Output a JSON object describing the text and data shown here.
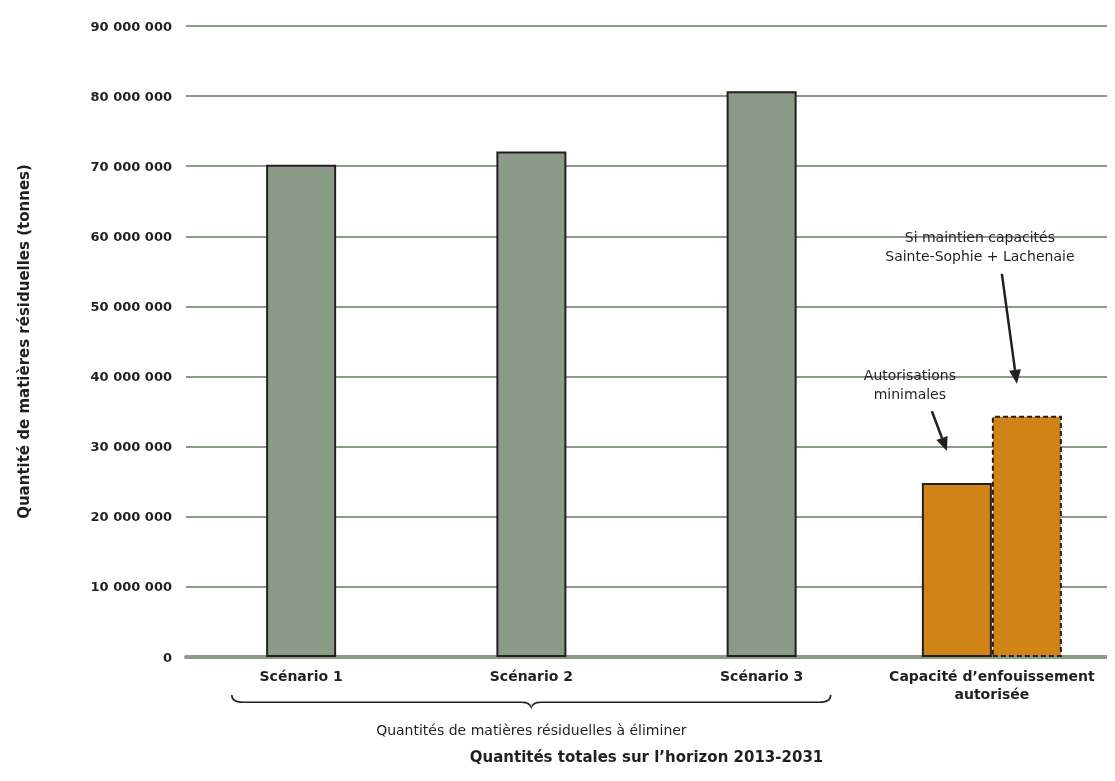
{
  "chart_data": {
    "type": "bar",
    "xlabel": "Quantités totales sur l’horizon 2013-2031",
    "ylabel": "Quantité de matières résiduelles (tonnes)",
    "categories": [
      "Scénario 1",
      "Scénario 2",
      "Scénario 3",
      "Capacité d’enfouissement\nautorisée"
    ],
    "series": [
      {
        "color": "#8a9b87",
        "values": [
          70200000,
          72100000,
          80700000,
          null
        ]
      },
      {
        "color": "#d08316",
        "values": [
          null,
          null,
          null,
          24800000
        ]
      },
      {
        "color": "#d08316",
        "values": [
          null,
          null,
          null,
          34400000
        ],
        "line_style": "dashed"
      }
    ],
    "ylim": [
      0,
      90000000
    ],
    "yticks": [
      {
        "value": 0,
        "label": "0"
      },
      {
        "value": 10000000,
        "label": "10 000 000"
      },
      {
        "value": 20000000,
        "label": "20 000 000"
      },
      {
        "value": 30000000,
        "label": "30 000 000"
      },
      {
        "value": 40000000,
        "label": "40 000 000"
      },
      {
        "value": 50000000,
        "label": "50 000 000"
      },
      {
        "value": 60000000,
        "label": "60 000 000"
      },
      {
        "value": 70000000,
        "label": "70 000 000"
      },
      {
        "value": 80000000,
        "label": "80 000 000"
      },
      {
        "value": 90000000,
        "label": "90 000 000"
      }
    ],
    "grid": "y",
    "annotations": [
      "Quantités de matières résiduelles à éliminer",
      "Autorisations\nminimales",
      "Si maintien capacités\nSainte-Sophie + Lachenaie"
    ]
  }
}
